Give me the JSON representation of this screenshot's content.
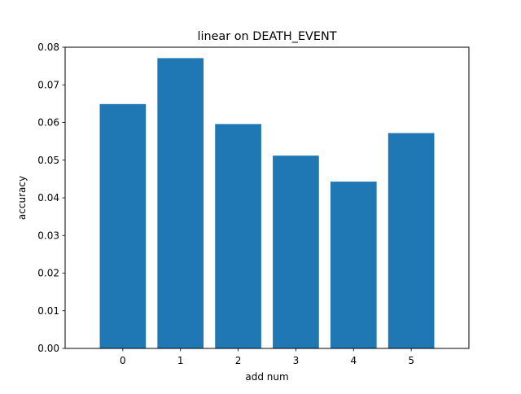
{
  "chart_data": {
    "type": "bar",
    "title": "linear on DEATH_EVENT",
    "xlabel": "add num",
    "ylabel": "accuracy",
    "categories": [
      "0",
      "1",
      "2",
      "3",
      "4",
      "5"
    ],
    "values": [
      0.0649,
      0.0771,
      0.0596,
      0.0512,
      0.0443,
      0.0572
    ],
    "ylim": [
      0,
      0.08
    ],
    "yticks": [
      "0.00",
      "0.01",
      "0.02",
      "0.03",
      "0.04",
      "0.05",
      "0.06",
      "0.07",
      "0.08"
    ],
    "bar_color": "#1f77b4",
    "grid": false,
    "legend": false
  }
}
